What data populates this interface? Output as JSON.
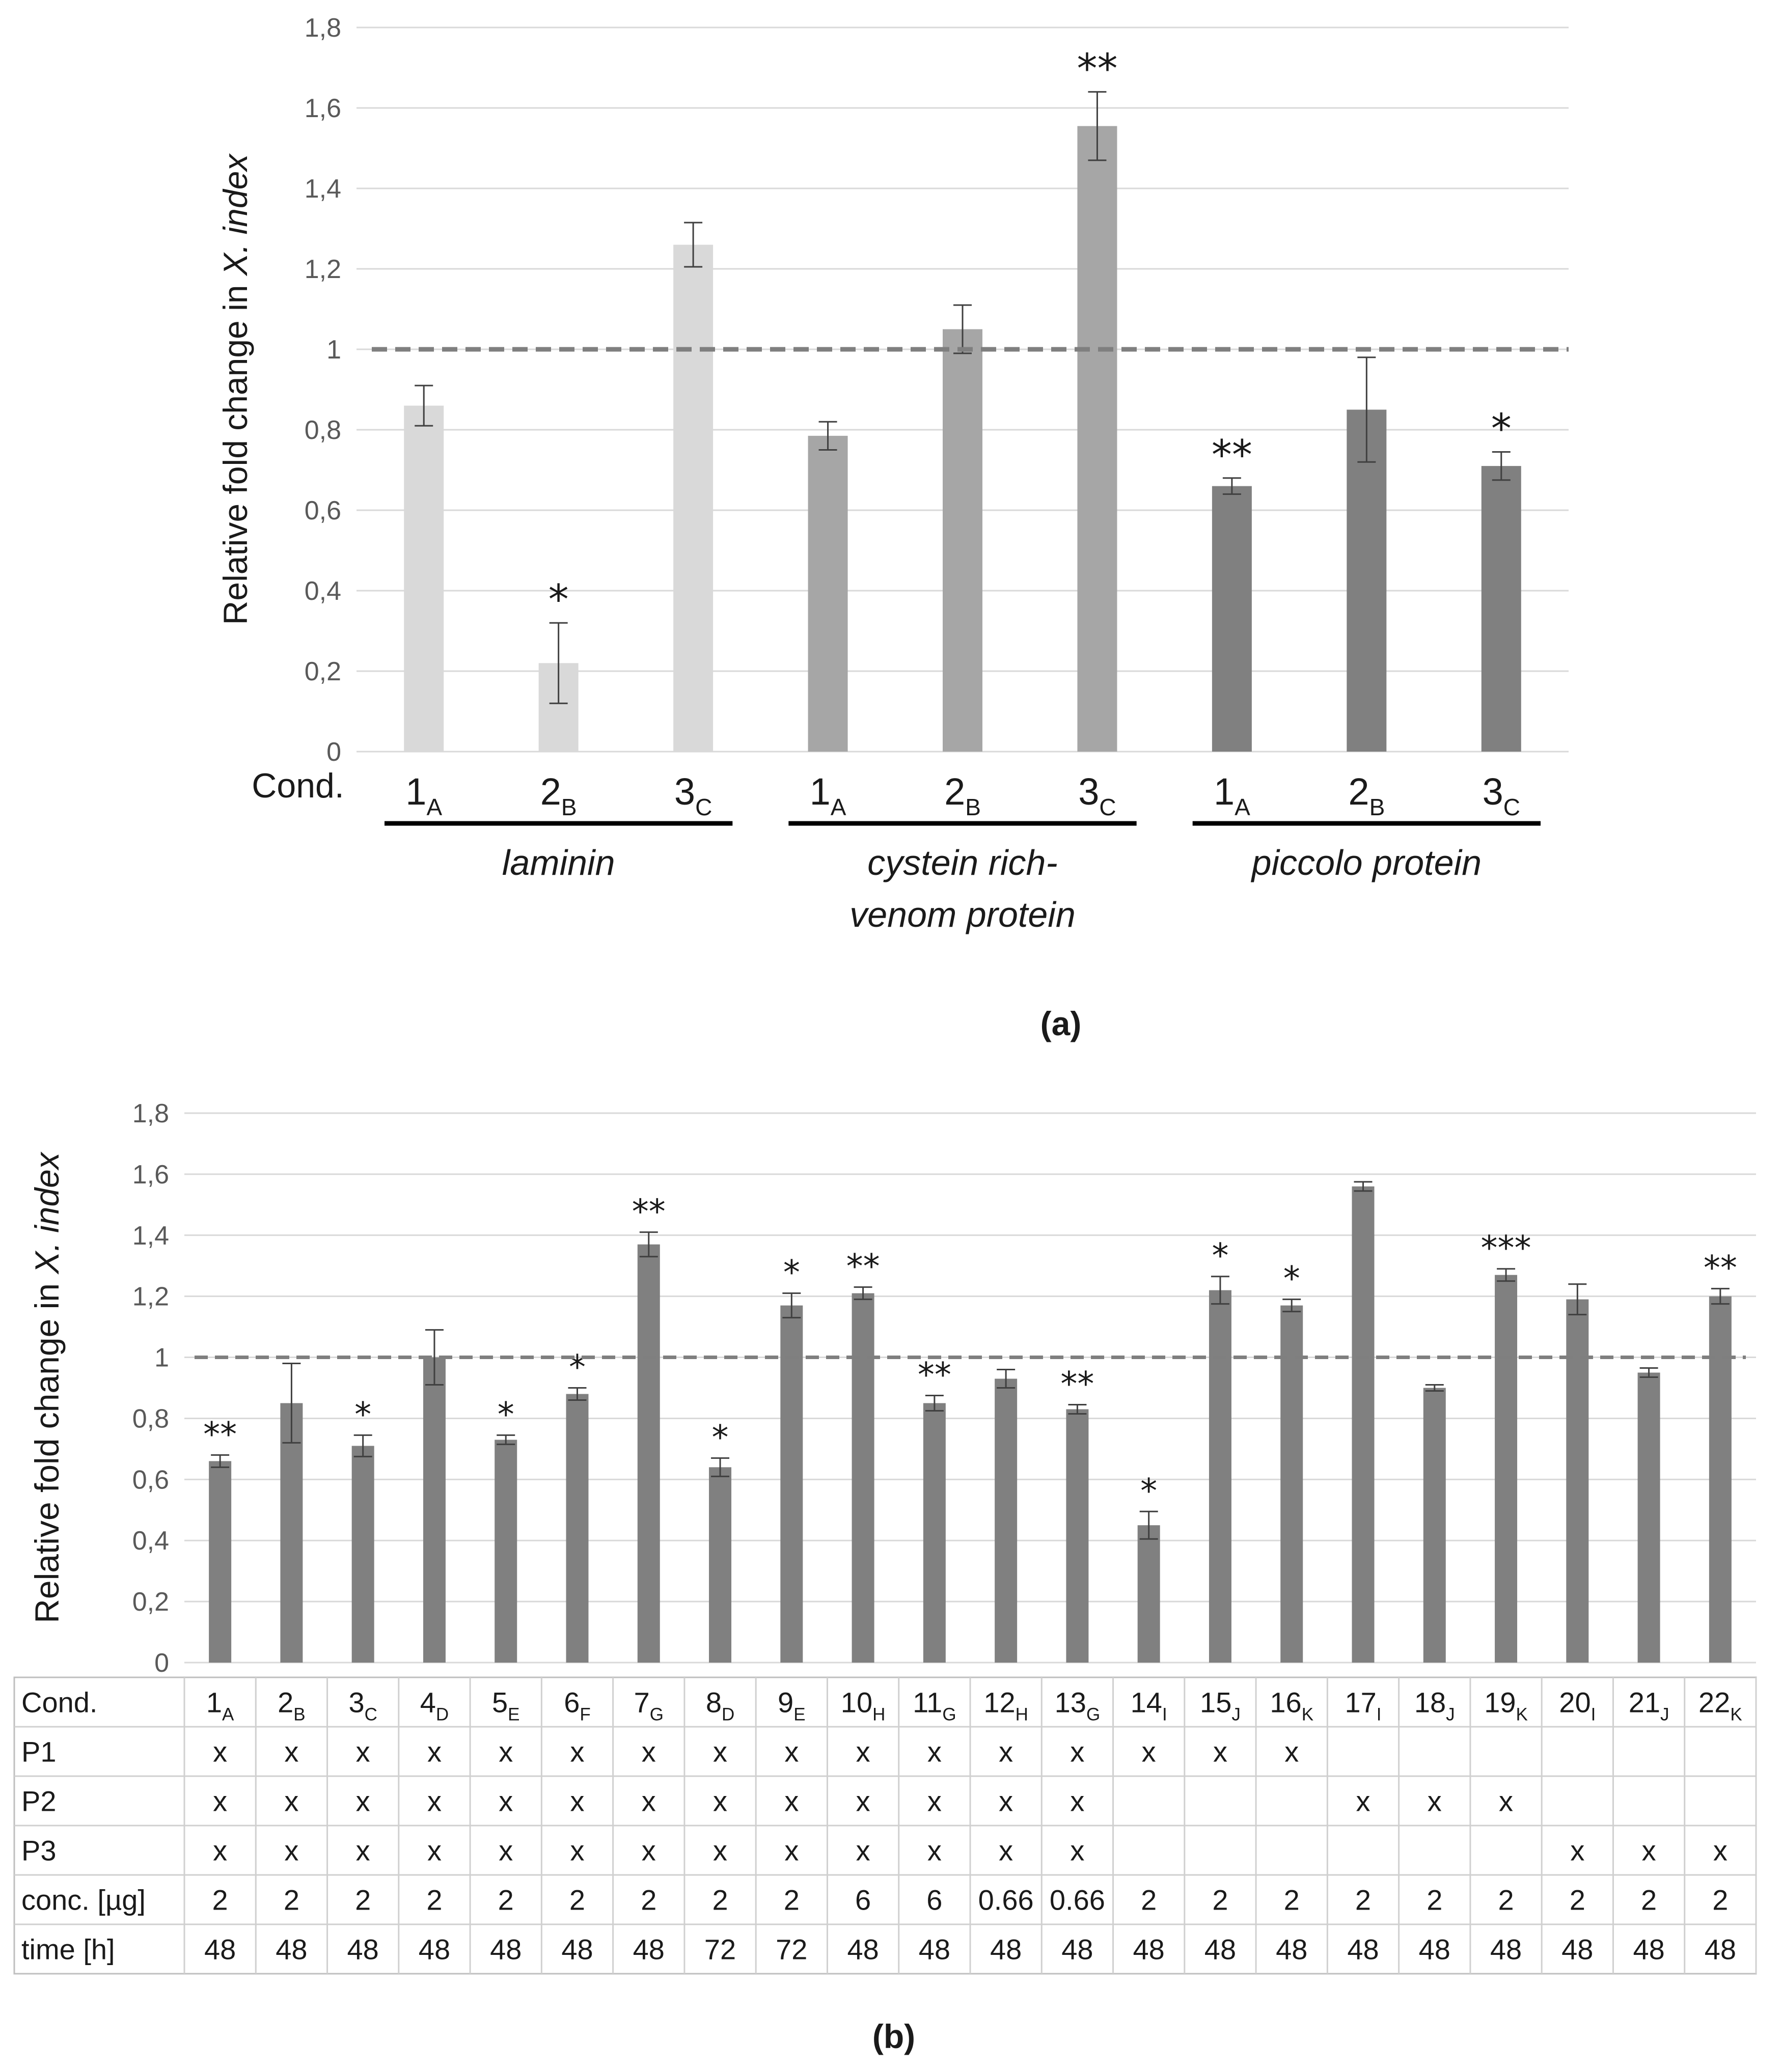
{
  "chart_data": [
    {
      "type": "bar",
      "panel": "(a)",
      "ylabel_prefix": "Relative fold change in ",
      "ylabel_italic": "X. index",
      "ylim": [
        0,
        1.8
      ],
      "ticks": [
        "0",
        "0,2",
        "0,4",
        "0,6",
        "0,8",
        "1",
        "1,2",
        "1,4",
        "1,6",
        "1,8"
      ],
      "grid": true,
      "reference_line": 1,
      "x_row_label": "Cond.",
      "groups": [
        {
          "label_lines": [
            "laminin"
          ],
          "color": "#d9d9d9",
          "categories": [
            {
              "num": "1",
              "sub": "A"
            },
            {
              "num": "2",
              "sub": "B"
            },
            {
              "num": "3",
              "sub": "C"
            }
          ],
          "values": [
            0.86,
            0.22,
            1.26
          ],
          "errors": [
            0.05,
            0.1,
            0.055
          ],
          "significance": [
            "",
            "*",
            ""
          ]
        },
        {
          "label_lines": [
            "cystein rich-",
            "venom protein"
          ],
          "color": "#a6a6a6",
          "categories": [
            {
              "num": "1",
              "sub": "A"
            },
            {
              "num": "2",
              "sub": "B"
            },
            {
              "num": "3",
              "sub": "C"
            }
          ],
          "values": [
            0.785,
            1.05,
            1.555
          ],
          "errors": [
            0.035,
            0.06,
            0.085
          ],
          "significance": [
            "",
            "",
            "**"
          ]
        },
        {
          "label_lines": [
            "piccolo protein"
          ],
          "color": "#808080",
          "categories": [
            {
              "num": "1",
              "sub": "A"
            },
            {
              "num": "2",
              "sub": "B"
            },
            {
              "num": "3",
              "sub": "C"
            }
          ],
          "values": [
            0.66,
            0.85,
            0.71
          ],
          "errors": [
            0.02,
            0.13,
            0.035
          ],
          "significance": [
            "**",
            "",
            "*"
          ]
        }
      ]
    },
    {
      "type": "bar",
      "panel": "(b)",
      "ylabel_prefix": "Relative fold change in ",
      "ylabel_italic": "X. index",
      "ylim": [
        0,
        1.8
      ],
      "ticks": [
        "0",
        "0,2",
        "0,4",
        "0,6",
        "0,8",
        "1",
        "1,2",
        "1,4",
        "1,6",
        "1,8"
      ],
      "grid": true,
      "reference_line": 1,
      "color": "#808080",
      "categories": [
        {
          "num": "1",
          "sub": "A"
        },
        {
          "num": "2",
          "sub": "B"
        },
        {
          "num": "3",
          "sub": "C"
        },
        {
          "num": "4",
          "sub": "D"
        },
        {
          "num": "5",
          "sub": "E"
        },
        {
          "num": "6",
          "sub": "F"
        },
        {
          "num": "7",
          "sub": "G"
        },
        {
          "num": "8",
          "sub": "D"
        },
        {
          "num": "9",
          "sub": "E"
        },
        {
          "num": "10",
          "sub": "H"
        },
        {
          "num": "11",
          "sub": "G"
        },
        {
          "num": "12",
          "sub": "H"
        },
        {
          "num": "13",
          "sub": "G"
        },
        {
          "num": "14",
          "sub": "I"
        },
        {
          "num": "15",
          "sub": "J"
        },
        {
          "num": "16",
          "sub": "K"
        },
        {
          "num": "17",
          "sub": "I"
        },
        {
          "num": "18",
          "sub": "J"
        },
        {
          "num": "19",
          "sub": "K"
        },
        {
          "num": "20",
          "sub": "I"
        },
        {
          "num": "21",
          "sub": "J"
        },
        {
          "num": "22",
          "sub": "K"
        }
      ],
      "values": [
        0.66,
        0.85,
        0.71,
        1.0,
        0.73,
        0.88,
        1.37,
        0.64,
        1.17,
        1.21,
        0.85,
        0.93,
        0.83,
        0.45,
        1.22,
        1.17,
        1.56,
        0.9,
        1.27,
        1.19,
        0.95,
        1.2
      ],
      "errors": [
        0.02,
        0.13,
        0.035,
        0.09,
        0.015,
        0.02,
        0.04,
        0.03,
        0.04,
        0.02,
        0.025,
        0.03,
        0.015,
        0.045,
        0.045,
        0.02,
        0.015,
        0.01,
        0.02,
        0.05,
        0.015,
        0.025
      ],
      "significance": [
        "**",
        "",
        "*",
        "",
        "*",
        "*",
        "**",
        "*",
        "*",
        "**",
        "**",
        "",
        "**",
        "*",
        "*",
        "*",
        "",
        "",
        "***",
        "",
        "",
        "**"
      ],
      "table": {
        "header_label": "Cond.",
        "rows": [
          {
            "label": "P1",
            "cells": [
              "x",
              "x",
              "x",
              "x",
              "x",
              "x",
              "x",
              "x",
              "x",
              "x",
              "x",
              "x",
              "x",
              "x",
              "x",
              "x",
              "",
              "",
              "",
              "",
              "",
              ""
            ]
          },
          {
            "label": "P2",
            "cells": [
              "x",
              "x",
              "x",
              "x",
              "x",
              "x",
              "x",
              "x",
              "x",
              "x",
              "x",
              "x",
              "x",
              "",
              "",
              "",
              "x",
              "x",
              "x",
              "",
              "",
              ""
            ]
          },
          {
            "label": "P3",
            "cells": [
              "x",
              "x",
              "x",
              "x",
              "x",
              "x",
              "x",
              "x",
              "x",
              "x",
              "x",
              "x",
              "x",
              "",
              "",
              "",
              "",
              "",
              "",
              "x",
              "x",
              "x"
            ]
          },
          {
            "label": "conc. [µg]",
            "cells": [
              "2",
              "2",
              "2",
              "2",
              "2",
              "2",
              "2",
              "2",
              "2",
              "6",
              "6",
              "0.66",
              "0.66",
              "2",
              "2",
              "2",
              "2",
              "2",
              "2",
              "2",
              "2",
              "2"
            ]
          },
          {
            "label": "time [h]",
            "cells": [
              "48",
              "48",
              "48",
              "48",
              "48",
              "48",
              "48",
              "72",
              "72",
              "48",
              "48",
              "48",
              "48",
              "48",
              "48",
              "48",
              "48",
              "48",
              "48",
              "48",
              "48",
              "48"
            ]
          }
        ]
      }
    }
  ]
}
